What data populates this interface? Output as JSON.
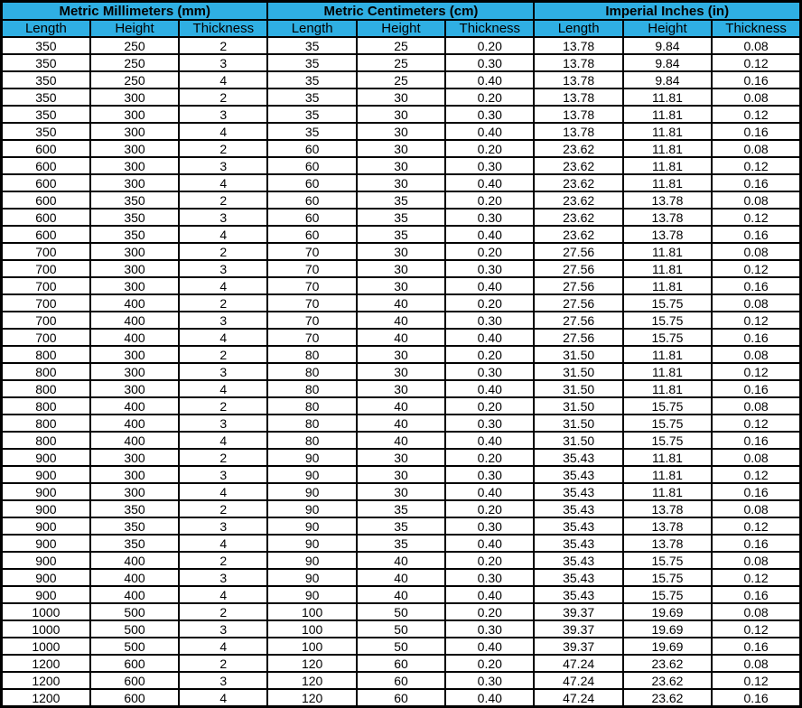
{
  "colors": {
    "header_bg": "#2FAFE3",
    "border": "#000000",
    "row_bg": "#FFFFFF",
    "text": "#000000"
  },
  "chart_data": {
    "type": "table",
    "section_headers": [
      "Metric Millimeters (mm)",
      "Metric Centimeters (cm)",
      "Imperial Inches (in)"
    ],
    "column_headers": [
      "Length",
      "Height",
      "Thickness",
      "Length",
      "Height",
      "Thickness",
      "Length",
      "Height",
      "Thickness"
    ],
    "rows": [
      [
        "350",
        "250",
        "2",
        "35",
        "25",
        "0.20",
        "13.78",
        "9.84",
        "0.08"
      ],
      [
        "350",
        "250",
        "3",
        "35",
        "25",
        "0.30",
        "13.78",
        "9.84",
        "0.12"
      ],
      [
        "350",
        "250",
        "4",
        "35",
        "25",
        "0.40",
        "13.78",
        "9.84",
        "0.16"
      ],
      [
        "350",
        "300",
        "2",
        "35",
        "30",
        "0.20",
        "13.78",
        "11.81",
        "0.08"
      ],
      [
        "350",
        "300",
        "3",
        "35",
        "30",
        "0.30",
        "13.78",
        "11.81",
        "0.12"
      ],
      [
        "350",
        "300",
        "4",
        "35",
        "30",
        "0.40",
        "13.78",
        "11.81",
        "0.16"
      ],
      [
        "600",
        "300",
        "2",
        "60",
        "30",
        "0.20",
        "23.62",
        "11.81",
        "0.08"
      ],
      [
        "600",
        "300",
        "3",
        "60",
        "30",
        "0.30",
        "23.62",
        "11.81",
        "0.12"
      ],
      [
        "600",
        "300",
        "4",
        "60",
        "30",
        "0.40",
        "23.62",
        "11.81",
        "0.16"
      ],
      [
        "600",
        "350",
        "2",
        "60",
        "35",
        "0.20",
        "23.62",
        "13.78",
        "0.08"
      ],
      [
        "600",
        "350",
        "3",
        "60",
        "35",
        "0.30",
        "23.62",
        "13.78",
        "0.12"
      ],
      [
        "600",
        "350",
        "4",
        "60",
        "35",
        "0.40",
        "23.62",
        "13.78",
        "0.16"
      ],
      [
        "700",
        "300",
        "2",
        "70",
        "30",
        "0.20",
        "27.56",
        "11.81",
        "0.08"
      ],
      [
        "700",
        "300",
        "3",
        "70",
        "30",
        "0.30",
        "27.56",
        "11.81",
        "0.12"
      ],
      [
        "700",
        "300",
        "4",
        "70",
        "30",
        "0.40",
        "27.56",
        "11.81",
        "0.16"
      ],
      [
        "700",
        "400",
        "2",
        "70",
        "40",
        "0.20",
        "27.56",
        "15.75",
        "0.08"
      ],
      [
        "700",
        "400",
        "3",
        "70",
        "40",
        "0.30",
        "27.56",
        "15.75",
        "0.12"
      ],
      [
        "700",
        "400",
        "4",
        "70",
        "40",
        "0.40",
        "27.56",
        "15.75",
        "0.16"
      ],
      [
        "800",
        "300",
        "2",
        "80",
        "30",
        "0.20",
        "31.50",
        "11.81",
        "0.08"
      ],
      [
        "800",
        "300",
        "3",
        "80",
        "30",
        "0.30",
        "31.50",
        "11.81",
        "0.12"
      ],
      [
        "800",
        "300",
        "4",
        "80",
        "30",
        "0.40",
        "31.50",
        "11.81",
        "0.16"
      ],
      [
        "800",
        "400",
        "2",
        "80",
        "40",
        "0.20",
        "31.50",
        "15.75",
        "0.08"
      ],
      [
        "800",
        "400",
        "3",
        "80",
        "40",
        "0.30",
        "31.50",
        "15.75",
        "0.12"
      ],
      [
        "800",
        "400",
        "4",
        "80",
        "40",
        "0.40",
        "31.50",
        "15.75",
        "0.16"
      ],
      [
        "900",
        "300",
        "2",
        "90",
        "30",
        "0.20",
        "35.43",
        "11.81",
        "0.08"
      ],
      [
        "900",
        "300",
        "3",
        "90",
        "30",
        "0.30",
        "35.43",
        "11.81",
        "0.12"
      ],
      [
        "900",
        "300",
        "4",
        "90",
        "30",
        "0.40",
        "35.43",
        "11.81",
        "0.16"
      ],
      [
        "900",
        "350",
        "2",
        "90",
        "35",
        "0.20",
        "35.43",
        "13.78",
        "0.08"
      ],
      [
        "900",
        "350",
        "3",
        "90",
        "35",
        "0.30",
        "35.43",
        "13.78",
        "0.12"
      ],
      [
        "900",
        "350",
        "4",
        "90",
        "35",
        "0.40",
        "35.43",
        "13.78",
        "0.16"
      ],
      [
        "900",
        "400",
        "2",
        "90",
        "40",
        "0.20",
        "35.43",
        "15.75",
        "0.08"
      ],
      [
        "900",
        "400",
        "3",
        "90",
        "40",
        "0.30",
        "35.43",
        "15.75",
        "0.12"
      ],
      [
        "900",
        "400",
        "4",
        "90",
        "40",
        "0.40",
        "35.43",
        "15.75",
        "0.16"
      ],
      [
        "1000",
        "500",
        "2",
        "100",
        "50",
        "0.20",
        "39.37",
        "19.69",
        "0.08"
      ],
      [
        "1000",
        "500",
        "3",
        "100",
        "50",
        "0.30",
        "39.37",
        "19.69",
        "0.12"
      ],
      [
        "1000",
        "500",
        "4",
        "100",
        "50",
        "0.40",
        "39.37",
        "19.69",
        "0.16"
      ],
      [
        "1200",
        "600",
        "2",
        "120",
        "60",
        "0.20",
        "47.24",
        "23.62",
        "0.08"
      ],
      [
        "1200",
        "600",
        "3",
        "120",
        "60",
        "0.30",
        "47.24",
        "23.62",
        "0.12"
      ],
      [
        "1200",
        "600",
        "4",
        "120",
        "60",
        "0.40",
        "47.24",
        "23.62",
        "0.16"
      ]
    ]
  }
}
